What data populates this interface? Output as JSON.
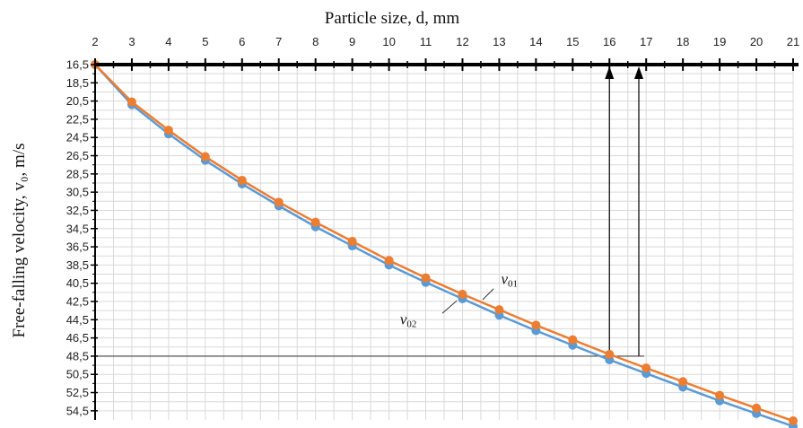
{
  "chart_data": {
    "type": "line",
    "xlabel": "Particle size, d, mm",
    "ylabel": "Free-falling velocity, v₀, m/s",
    "x_position": "top",
    "y_inverted": true,
    "xlim": [
      2,
      21
    ],
    "ylim": [
      16.5,
      55.5
    ],
    "x_ticks": [
      "2",
      "3",
      "4",
      "5",
      "6",
      "7",
      "8",
      "9",
      "10",
      "11",
      "12",
      "13",
      "14",
      "15",
      "16",
      "17",
      "18",
      "19",
      "20",
      "21"
    ],
    "y_ticks": [
      "16,5",
      "18,5",
      "20,5",
      "22,5",
      "24,5",
      "26,5",
      "28,5",
      "30,5",
      "32,5",
      "34,5",
      "36,5",
      "38,5",
      "40,5",
      "42,5",
      "44,5",
      "46,5",
      "48,5",
      "50,5",
      "52,5",
      "54,5"
    ],
    "grid": true,
    "series": [
      {
        "name": "v01",
        "label_main": "v",
        "label_sub": "01",
        "color": "#ED7D31",
        "x": [
          2,
          3,
          4,
          5,
          6,
          7,
          8,
          9,
          10,
          11,
          12,
          13,
          14,
          15,
          16,
          17,
          18,
          19,
          20,
          21
        ],
        "y": [
          16.5,
          20.6,
          23.7,
          26.6,
          29.2,
          31.6,
          33.8,
          35.9,
          38.0,
          39.9,
          41.7,
          43.4,
          45.1,
          46.7,
          48.3,
          49.8,
          51.3,
          52.8,
          54.2,
          55.6
        ]
      },
      {
        "name": "v02",
        "label_main": "v",
        "label_sub": "02",
        "color": "#5B9BD5",
        "x": [
          2,
          3,
          4,
          5,
          6,
          7,
          8,
          9,
          10,
          11,
          12,
          13,
          14,
          15,
          16,
          17,
          18,
          19,
          20,
          21
        ],
        "y": [
          16.5,
          20.9,
          24.1,
          27.0,
          29.6,
          32.0,
          34.3,
          36.4,
          38.5,
          40.4,
          42.2,
          44.0,
          45.7,
          47.3,
          48.9,
          50.4,
          51.9,
          53.4,
          54.8,
          56.2
        ]
      }
    ],
    "annotations": {
      "horizontal_line_y": 48.5,
      "vertical_arrows_x": [
        16,
        16.8
      ]
    }
  }
}
